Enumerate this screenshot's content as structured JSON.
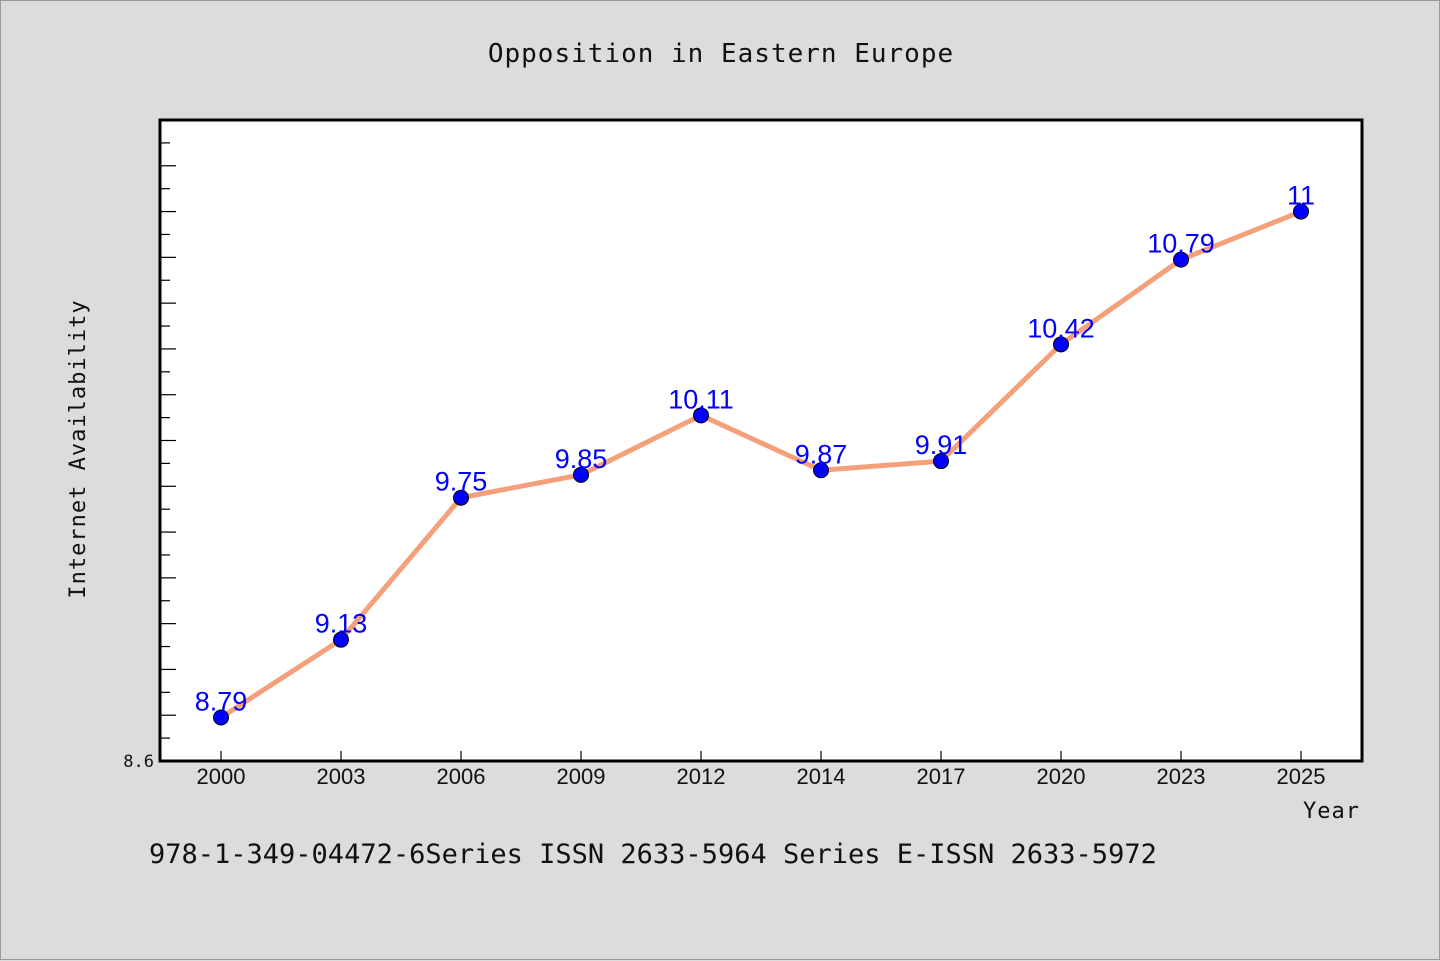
{
  "chart_data": {
    "type": "line",
    "title": "Opposition in Eastern Europe",
    "xlabel": "Year",
    "ylabel": "Internet Availability",
    "categories": [
      "2000",
      "2003",
      "2006",
      "2009",
      "2012",
      "2014",
      "2017",
      "2020",
      "2023",
      "2025"
    ],
    "series": [
      {
        "values": [
          8.79,
          9.13,
          9.75,
          9.85,
          10.11,
          9.87,
          9.91,
          10.42,
          10.79,
          11
        ]
      }
    ],
    "data_labels": [
      "8.79",
      "9.13",
      "9.75",
      "9.85",
      "10.11",
      "9.87",
      "9.91",
      "10.42",
      "10.79",
      "11"
    ],
    "y_tick_labels": [
      "8.6"
    ],
    "ylim": [
      8.6,
      11.4
    ],
    "grid": false,
    "colors": {
      "line": "#f4a07a",
      "marker": "#0000ff",
      "data_label": "#0000ff",
      "background": "#dcdcdc",
      "plot_background": "#ffffff"
    }
  },
  "footer": {
    "text": "978-1-349-04472-6Series ISSN 2633-5964 Series E-ISSN 2633-5972"
  }
}
